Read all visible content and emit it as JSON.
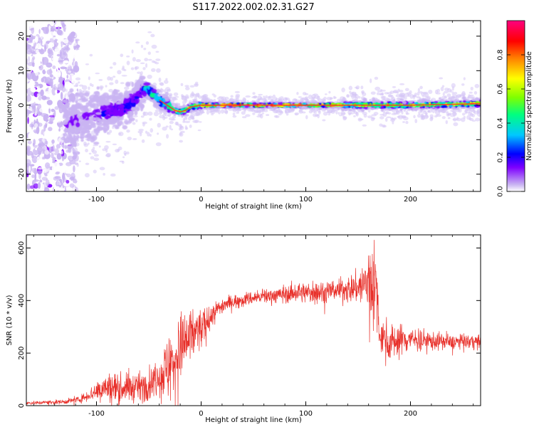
{
  "title": "S117.2022.002.02.31.G27",
  "chart_data": [
    {
      "type": "heatmap",
      "xlabel": "Height of straight line (km)",
      "ylabel": "Frequency (Hz)",
      "xlim": [
        -167,
        267
      ],
      "ylim": [
        -25,
        24.5
      ],
      "xticks": [
        -100,
        0,
        100,
        200
      ],
      "yticks": [
        -20,
        -10,
        0,
        10,
        20
      ],
      "colorbar": {
        "label": "Normalized spectral amplitude",
        "range": [
          0,
          1
        ],
        "ticks": [
          0.0,
          0.2,
          0.4,
          0.6,
          0.8
        ],
        "colors": [
          "#ffffff",
          "#c9b4f2",
          "#7e00ff",
          "#0000ff",
          "#00c8ff",
          "#00ff80",
          "#7fff00",
          "#ffff00",
          "#ff8000",
          "#ff0000",
          "#ff0080"
        ]
      },
      "ridge": {
        "x": [
          -150,
          -130,
          -110,
          -95,
          -85,
          -75,
          -65,
          -58,
          -52,
          -45,
          -40,
          -35,
          -30,
          -25,
          -20,
          -15,
          -10,
          0,
          50,
          100,
          150,
          200,
          250,
          267
        ],
        "y": [
          -6,
          -5,
          -3.5,
          -2.5,
          -2,
          -1,
          1,
          3.5,
          5,
          3,
          1.5,
          0.5,
          -0.5,
          -1.5,
          -2,
          -1.5,
          -0.5,
          0,
          0,
          0,
          0,
          0,
          0.3,
          0.5
        ]
      }
    },
    {
      "type": "line",
      "xlabel": "Height of straight line (km)",
      "ylabel": "SNR (10 * v/v)",
      "xlim": [
        -167,
        267
      ],
      "ylim": [
        0,
        650
      ],
      "xticks": [
        -100,
        0,
        100,
        200
      ],
      "yticks": [
        0,
        200,
        400,
        600
      ],
      "color": "#e8302a",
      "x": [
        -167,
        -150,
        -130,
        -115,
        -105,
        -95,
        -85,
        -75,
        -65,
        -55,
        -45,
        -40,
        -35,
        -30,
        -25,
        -20,
        -15,
        -10,
        -5,
        0,
        5,
        10,
        15,
        20,
        25,
        30,
        40,
        50,
        60,
        70,
        80,
        90,
        100,
        110,
        120,
        130,
        140,
        150,
        155,
        160,
        163,
        166,
        168,
        170,
        175,
        180,
        190,
        200,
        210,
        220,
        230,
        240,
        250,
        260,
        267
      ],
      "y": [
        10,
        12,
        15,
        25,
        45,
        65,
        70,
        65,
        68,
        75,
        90,
        110,
        130,
        150,
        175,
        210,
        240,
        265,
        280,
        290,
        310,
        340,
        365,
        380,
        390,
        395,
        405,
        410,
        415,
        420,
        425,
        430,
        430,
        432,
        435,
        440,
        445,
        450,
        460,
        470,
        480,
        470,
        440,
        300,
        250,
        240,
        250,
        255,
        250,
        245,
        245,
        240,
        245,
        245,
        240
      ],
      "noise": [
        3,
        4,
        5,
        8,
        15,
        30,
        30,
        30,
        30,
        32,
        35,
        45,
        60,
        75,
        80,
        80,
        75,
        65,
        55,
        45,
        35,
        25,
        20,
        18,
        16,
        15,
        15,
        15,
        16,
        17,
        18,
        20,
        22,
        25,
        25,
        25,
        28,
        35,
        55,
        80,
        100,
        85,
        60,
        50,
        45,
        40,
        35,
        30,
        25,
        20,
        18,
        15,
        15,
        15,
        15
      ]
    }
  ]
}
